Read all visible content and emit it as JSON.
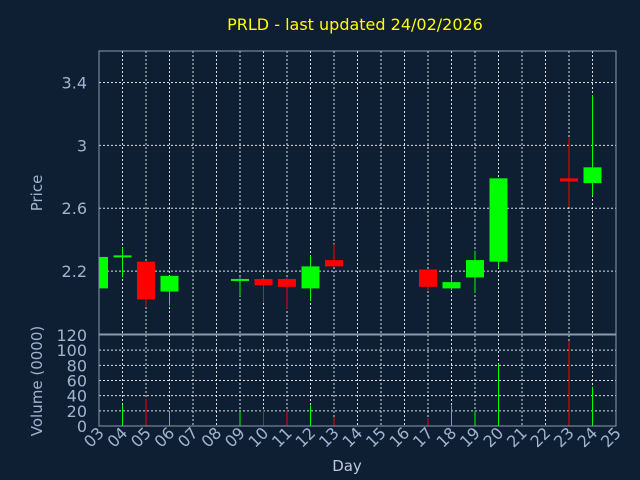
{
  "chart_data": {
    "type": "candlestick",
    "title": "PRLD - last updated 24/02/2026",
    "xlabel": "Day",
    "ylabel_price": "Price",
    "ylabel_volume": "Volume (0000)",
    "x_ticks": [
      "03",
      "04",
      "05",
      "06",
      "07",
      "08",
      "09",
      "10",
      "11",
      "12",
      "13",
      "14",
      "15",
      "16",
      "17",
      "18",
      "19",
      "20",
      "21",
      "22",
      "23",
      "24",
      "25"
    ],
    "price_ticks": [
      "2.2",
      "2.6",
      "3",
      "3.4"
    ],
    "price_tick_values": [
      2.2,
      2.6,
      3.0,
      3.4
    ],
    "price_ylim": [
      1.8,
      3.6
    ],
    "volume_ticks": [
      "0",
      "20",
      "40",
      "60",
      "80",
      "100",
      "120"
    ],
    "volume_tick_values": [
      0,
      20,
      40,
      60,
      80,
      100,
      120
    ],
    "volume_ylim": [
      0,
      120
    ],
    "grid": true,
    "up_color": "#00ff00",
    "down_color": "#ff0000",
    "candles": [
      {
        "day": "03",
        "open": 2.09,
        "close": 2.29,
        "high": 2.29,
        "low": 2.09,
        "volume": 0
      },
      {
        "day": "04",
        "open": 2.29,
        "close": 2.3,
        "high": 2.35,
        "low": 2.16,
        "volume": 28
      },
      {
        "day": "05",
        "open": 2.26,
        "close": 2.02,
        "high": 2.26,
        "low": 1.98,
        "volume": 36
      },
      {
        "day": "06",
        "open": 2.07,
        "close": 2.17,
        "high": 2.17,
        "low": 1.98,
        "volume": 20
      },
      {
        "day": "09",
        "open": 2.14,
        "close": 2.15,
        "high": 2.16,
        "low": 2.04,
        "volume": 20
      },
      {
        "day": "10",
        "open": 2.15,
        "close": 2.11,
        "high": 2.16,
        "low": 2.0,
        "volume": 22
      },
      {
        "day": "11",
        "open": 2.15,
        "close": 2.1,
        "high": 2.16,
        "low": 1.96,
        "volume": 20
      },
      {
        "day": "12",
        "open": 2.09,
        "close": 2.23,
        "high": 2.3,
        "low": 2.01,
        "volume": 27
      },
      {
        "day": "13",
        "open": 2.27,
        "close": 2.23,
        "high": 2.37,
        "low": 2.23,
        "volume": 12
      },
      {
        "day": "17",
        "open": 2.21,
        "close": 2.1,
        "high": 2.21,
        "low": 2.08,
        "volume": 10
      },
      {
        "day": "18",
        "open": 2.09,
        "close": 2.13,
        "high": 2.16,
        "low": 2.08,
        "volume": 27
      },
      {
        "day": "19",
        "open": 2.16,
        "close": 2.27,
        "high": 2.33,
        "low": 2.06,
        "volume": 20
      },
      {
        "day": "20",
        "open": 2.26,
        "close": 2.79,
        "high": 2.79,
        "low": 2.22,
        "volume": 82
      },
      {
        "day": "23",
        "open": 2.79,
        "close": 2.77,
        "high": 3.05,
        "low": 2.61,
        "volume": 112
      },
      {
        "day": "24",
        "open": 2.76,
        "close": 2.86,
        "high": 3.32,
        "low": 2.68,
        "volume": 52
      }
    ]
  }
}
